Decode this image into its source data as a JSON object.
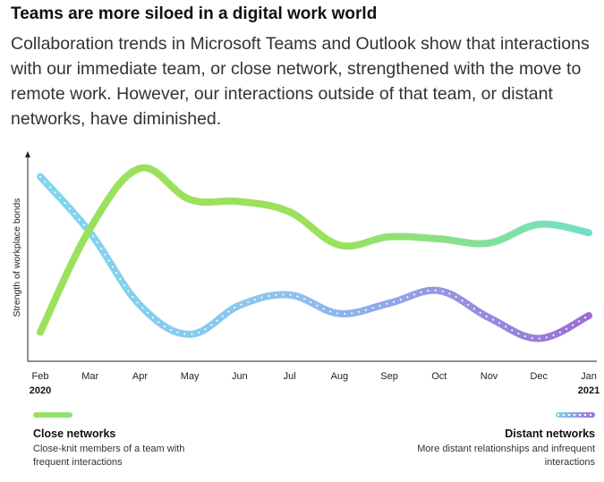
{
  "header": {
    "title": "Teams are more siloed in a digital work world",
    "subtitle": "Collaboration trends in Microsoft Teams and Outlook show that interactions with our immediate team, or close network, strengthened with the move to remote work. However, our interactions outside of that team, or distant networks, have diminished."
  },
  "chart_data": {
    "type": "line",
    "ylabel": "Strength of workplace bonds",
    "x": [
      "Feb",
      "Mar",
      "Apr",
      "May",
      "Jun",
      "Jul",
      "Aug",
      "Sep",
      "Oct",
      "Nov",
      "Dec",
      "Jan"
    ],
    "year_labels": {
      "start": "2020",
      "end": "2021"
    },
    "ylim": [
      0,
      100
    ],
    "grid": false,
    "legend_placement": "bottom",
    "series": [
      {
        "name": "Close networks",
        "description": "Close-knit members of a team with frequent interactions",
        "values": [
          14,
          64,
          93,
          78,
          77,
          72,
          56,
          60,
          59,
          57,
          66,
          62
        ],
        "color_start": "#9be15d",
        "color_end": "#74dfc7",
        "style": "solid"
      },
      {
        "name": "Distant networks",
        "description": "More distant relationships and infrequent interactions",
        "values": [
          89,
          62,
          27,
          13,
          27,
          32,
          23,
          28,
          34,
          21,
          11,
          22
        ],
        "color_start": "#7fd6f0",
        "color_end": "#9b6fd6",
        "style": "dotted"
      }
    ]
  }
}
